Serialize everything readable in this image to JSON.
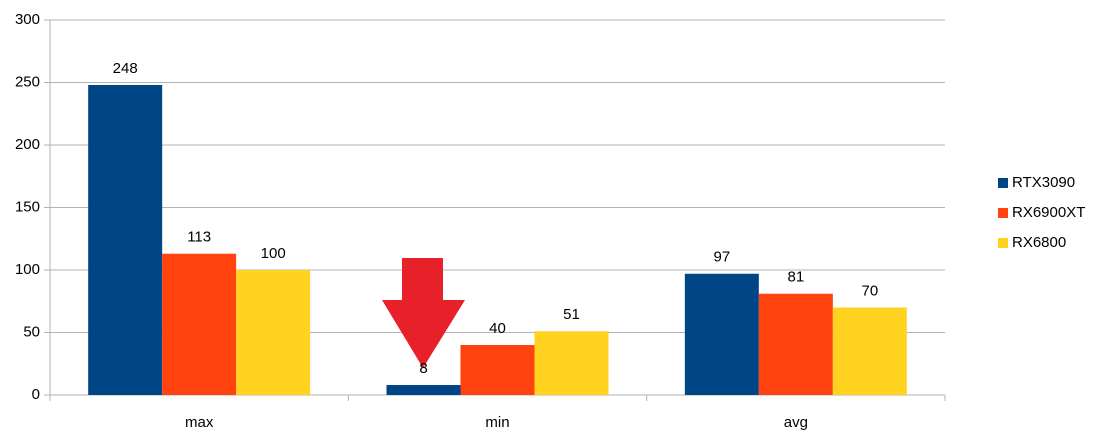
{
  "chart_data": {
    "type": "bar",
    "categories": [
      "max",
      "min",
      "avg"
    ],
    "series": [
      {
        "name": "RTX3090",
        "color": "#004586",
        "values": [
          248,
          8,
          97
        ]
      },
      {
        "name": "RX6900XT",
        "color": "#ff420e",
        "values": [
          113,
          40,
          81
        ]
      },
      {
        "name": "RX6800",
        "color": "#ffd320",
        "values": [
          100,
          51,
          70
        ]
      }
    ],
    "ylim": [
      0,
      300
    ],
    "yticks": [
      0,
      50,
      100,
      150,
      200,
      250,
      300
    ],
    "grid": true,
    "legend": "right"
  }
}
